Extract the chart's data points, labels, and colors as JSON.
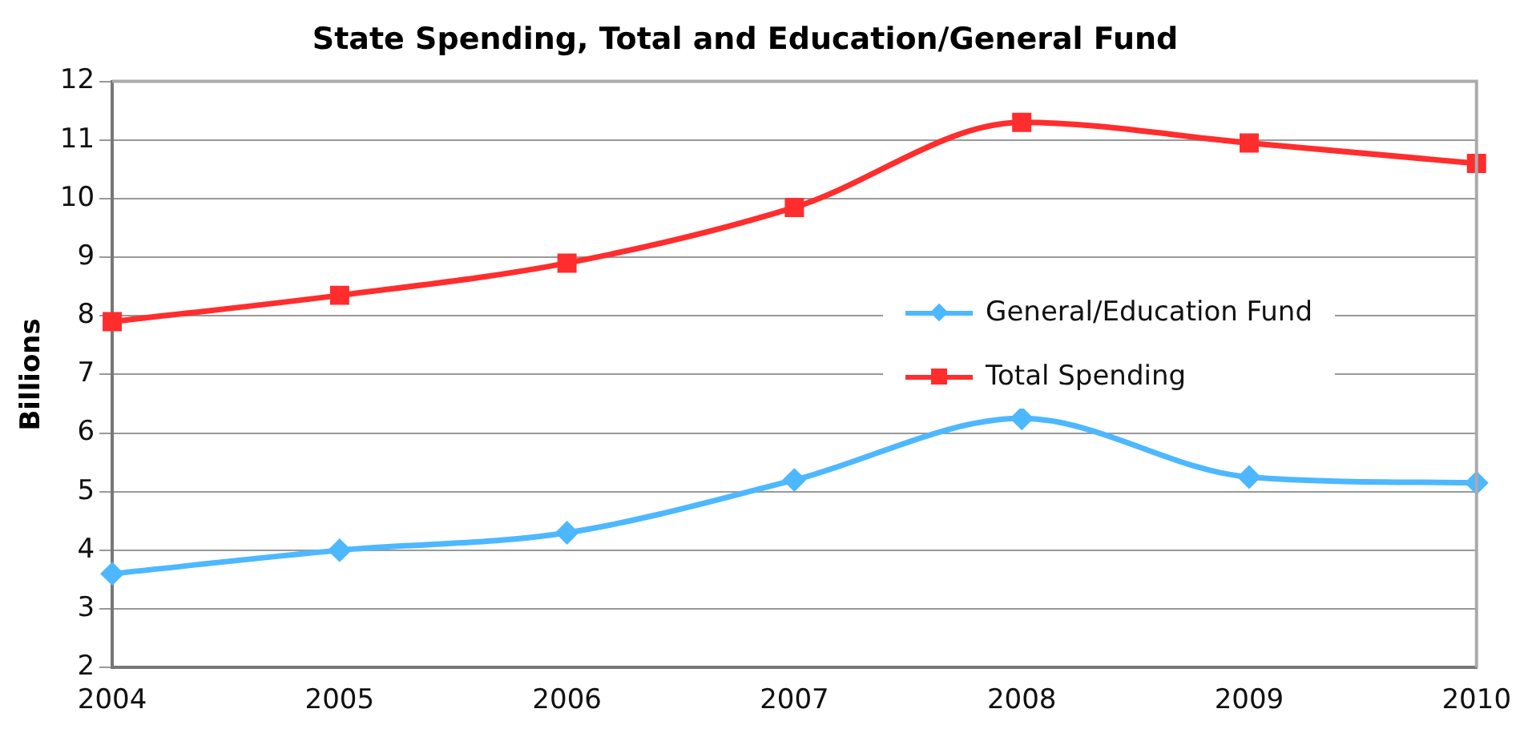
{
  "chart_data": {
    "type": "line",
    "title": "State Spending, Total and Education/General Fund",
    "ylabel": "Billions",
    "categories": [
      "2004",
      "2005",
      "2006",
      "2007",
      "2008",
      "2009",
      "2010"
    ],
    "series": [
      {
        "name": "General/Education Fund",
        "color": "#4db8ff",
        "marker": "diamond",
        "values": [
          3.6,
          4.0,
          4.3,
          5.2,
          6.25,
          5.25,
          5.15
        ]
      },
      {
        "name": "Total Spending",
        "color": "#ff2d2d",
        "marker": "square",
        "values": [
          7.9,
          8.35,
          8.9,
          9.85,
          11.3,
          10.95,
          10.6
        ]
      }
    ],
    "ylim": [
      2,
      12
    ],
    "yticks": [
      2,
      3,
      4,
      5,
      6,
      7,
      8,
      9,
      10,
      11,
      12
    ],
    "grid": "y",
    "legend": "right",
    "line_style": "solid"
  }
}
